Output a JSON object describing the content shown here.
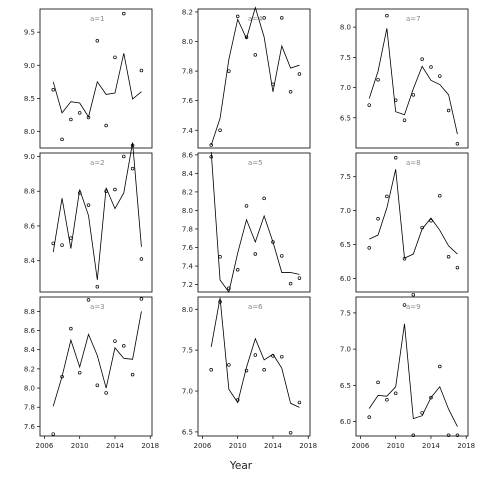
{
  "chart_data": {
    "type": "scatter",
    "title": "",
    "xlabel": "Year",
    "ylabel": "",
    "xlim": [
      2005.5,
      2018.2
    ],
    "x_ticks": [
      2006,
      2010,
      2014,
      2018
    ],
    "grid": false,
    "legend": "none",
    "colors": {
      "points": "#000000",
      "line": "#000000",
      "panel_label": "#888888"
    },
    "panels": [
      {
        "label": "a=1",
        "ylim": [
          7.75,
          9.85
        ],
        "y_ticks": [
          8.0,
          8.5,
          9.0,
          9.5
        ],
        "points": {
          "x": [
            2007,
            2008,
            2009,
            2010,
            2011,
            2012,
            2013,
            2014,
            2015,
            2016,
            2017
          ],
          "y": [
            8.63,
            7.88,
            8.18,
            8.28,
            8.21,
            9.37,
            8.09,
            9.12,
            9.78,
            7.79,
            8.92
          ]
        },
        "line": {
          "x": [
            2007,
            2008,
            2009,
            2010,
            2011,
            2012,
            2013,
            2014,
            2015,
            2016,
            2017
          ],
          "y": [
            8.75,
            8.28,
            8.45,
            8.43,
            8.22,
            8.75,
            8.56,
            8.58,
            9.18,
            8.49,
            8.6
          ]
        }
      },
      {
        "label": "a=4",
        "ylim": [
          7.28,
          8.22
        ],
        "y_ticks": [
          7.4,
          7.6,
          7.8,
          8.0,
          8.2
        ],
        "points": {
          "x": [
            2007,
            2008,
            2009,
            2010,
            2011,
            2012,
            2013,
            2014,
            2015,
            2016,
            2017
          ],
          "y": [
            7.3,
            7.4,
            7.8,
            8.17,
            8.03,
            7.91,
            8.16,
            7.71,
            8.16,
            7.66,
            7.78
          ]
        },
        "line": {
          "x": [
            2007,
            2008,
            2009,
            2010,
            2011,
            2012,
            2013,
            2014,
            2015,
            2016,
            2017
          ],
          "y": [
            7.3,
            7.48,
            7.88,
            8.15,
            8.02,
            8.23,
            8.03,
            7.66,
            7.97,
            7.82,
            7.84
          ]
        }
      },
      {
        "label": "a=7",
        "ylim": [
          6.0,
          8.3
        ],
        "y_ticks": [
          6.5,
          7.0,
          7.5,
          8.0
        ],
        "points": {
          "x": [
            2007,
            2008,
            2009,
            2010,
            2011,
            2012,
            2013,
            2014,
            2015,
            2016,
            2017
          ],
          "y": [
            6.71,
            7.13,
            8.19,
            6.79,
            6.46,
            6.88,
            7.47,
            7.34,
            7.19,
            6.62,
            6.07
          ]
        },
        "line": {
          "x": [
            2007,
            2008,
            2009,
            2010,
            2011,
            2012,
            2013,
            2014,
            2015,
            2016,
            2017
          ],
          "y": [
            6.82,
            7.27,
            7.98,
            6.6,
            6.55,
            6.98,
            7.35,
            7.12,
            7.05,
            6.88,
            6.23
          ]
        }
      },
      {
        "label": "a=2",
        "ylim": [
          8.22,
          9.02
        ],
        "y_ticks": [
          8.4,
          8.6,
          8.8,
          9.0
        ],
        "points": {
          "x": [
            2007,
            2008,
            2009,
            2010,
            2011,
            2012,
            2013,
            2014,
            2015,
            2016,
            2017
          ],
          "y": [
            8.5,
            8.49,
            8.53,
            8.79,
            8.72,
            8.25,
            8.8,
            8.81,
            9.0,
            8.93,
            8.41
          ]
        },
        "line": {
          "x": [
            2007,
            2008,
            2009,
            2010,
            2011,
            2012,
            2013,
            2014,
            2015,
            2016,
            2017
          ],
          "y": [
            8.45,
            8.76,
            8.47,
            8.81,
            8.66,
            8.29,
            8.82,
            8.7,
            8.79,
            9.08,
            8.48
          ]
        }
      },
      {
        "label": "a=5",
        "ylim": [
          7.12,
          8.62
        ],
        "y_ticks": [
          7.2,
          7.4,
          7.6,
          7.8,
          8.0,
          8.2,
          8.4,
          8.6
        ],
        "points": {
          "x": [
            2007,
            2008,
            2009,
            2010,
            2011,
            2012,
            2013,
            2014,
            2015,
            2016,
            2017
          ],
          "y": [
            8.58,
            7.5,
            7.16,
            7.36,
            8.05,
            7.53,
            8.13,
            7.66,
            7.51,
            7.21,
            7.27
          ]
        },
        "line": {
          "x": [
            2007,
            2008,
            2009,
            2010,
            2011,
            2012,
            2013,
            2014,
            2015,
            2016,
            2017
          ],
          "y": [
            8.63,
            7.25,
            7.12,
            7.54,
            7.9,
            7.66,
            7.94,
            7.66,
            7.33,
            7.33,
            7.31
          ]
        }
      },
      {
        "label": "a=8",
        "ylim": [
          5.8,
          7.85
        ],
        "y_ticks": [
          6.0,
          6.5,
          7.0,
          7.5
        ],
        "points": {
          "x": [
            2007,
            2008,
            2009,
            2010,
            2011,
            2012,
            2013,
            2014,
            2015,
            2016,
            2017
          ],
          "y": [
            6.45,
            6.88,
            7.21,
            7.78,
            6.29,
            5.76,
            6.75,
            6.85,
            7.22,
            6.32,
            6.16
          ]
        },
        "line": {
          "x": [
            2007,
            2008,
            2009,
            2010,
            2011,
            2012,
            2013,
            2014,
            2015,
            2016,
            2017
          ],
          "y": [
            6.58,
            6.64,
            7.04,
            7.61,
            6.3,
            6.36,
            6.73,
            6.89,
            6.71,
            6.48,
            6.36
          ]
        }
      },
      {
        "label": "a=3",
        "ylim": [
          7.5,
          8.95
        ],
        "y_ticks": [
          7.6,
          7.8,
          8.0,
          8.2,
          8.4,
          8.6,
          8.8
        ],
        "points": {
          "x": [
            2007,
            2008,
            2009,
            2010,
            2011,
            2012,
            2013,
            2014,
            2015,
            2016,
            2017
          ],
          "y": [
            7.52,
            8.12,
            8.62,
            8.16,
            8.92,
            8.03,
            7.95,
            8.49,
            8.44,
            8.14,
            8.93
          ]
        },
        "line": {
          "x": [
            2007,
            2008,
            2009,
            2010,
            2011,
            2012,
            2013,
            2014,
            2015,
            2016,
            2017
          ],
          "y": [
            7.81,
            8.12,
            8.5,
            8.22,
            8.56,
            8.34,
            8.0,
            8.42,
            8.31,
            8.3,
            8.8
          ]
        }
      },
      {
        "label": "a=6",
        "ylim": [
          6.45,
          8.15
        ],
        "y_ticks": [
          6.5,
          7.0,
          7.5,
          8.0
        ],
        "points": {
          "x": [
            2007,
            2008,
            2009,
            2010,
            2011,
            2012,
            2013,
            2014,
            2015,
            2016,
            2017
          ],
          "y": [
            7.26,
            8.09,
            7.32,
            6.89,
            7.25,
            7.44,
            7.26,
            7.43,
            7.42,
            6.49,
            6.86
          ]
        },
        "line": {
          "x": [
            2007,
            2008,
            2009,
            2010,
            2011,
            2012,
            2013,
            2014,
            2015,
            2016,
            2017
          ],
          "y": [
            7.54,
            8.14,
            7.02,
            6.86,
            7.29,
            7.64,
            7.38,
            7.45,
            7.28,
            6.85,
            6.8
          ]
        }
      },
      {
        "label": "a=9",
        "ylim": [
          5.8,
          7.72
        ],
        "y_ticks": [
          6.0,
          6.5,
          7.0,
          7.5
        ],
        "points": {
          "x": [
            2007,
            2008,
            2009,
            2010,
            2011,
            2012,
            2013,
            2014,
            2015,
            2016,
            2017
          ],
          "y": [
            6.06,
            6.54,
            6.3,
            6.39,
            7.61,
            5.81,
            6.12,
            6.33,
            6.76,
            5.81,
            5.81
          ]
        },
        "line": {
          "x": [
            2007,
            2008,
            2009,
            2010,
            2011,
            2012,
            2013,
            2014,
            2015,
            2016,
            2017
          ],
          "y": [
            6.18,
            6.36,
            6.35,
            6.48,
            7.35,
            6.04,
            6.08,
            6.33,
            6.48,
            6.17,
            5.93
          ]
        }
      }
    ]
  }
}
